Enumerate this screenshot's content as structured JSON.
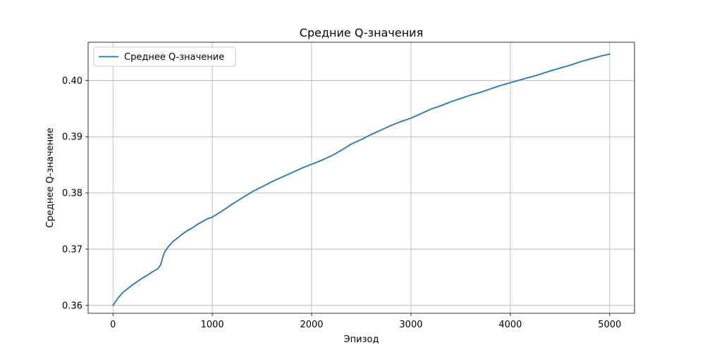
{
  "chart_data": {
    "type": "line",
    "title": "Средние Q-значения",
    "xlabel": "Эпизод",
    "ylabel": "Среднее Q-значение",
    "xlim": [
      -250,
      5250
    ],
    "ylim": [
      0.3586,
      0.4068
    ],
    "xticks": [
      0,
      1000,
      2000,
      3000,
      4000,
      5000
    ],
    "yticks": [
      0.36,
      0.37,
      0.38,
      0.39,
      0.4
    ],
    "ytick_labels": [
      "0.36",
      "0.37",
      "0.38",
      "0.39",
      "0.40"
    ],
    "grid": true,
    "legend_position": "top-left",
    "series": [
      {
        "name": "Среднее Q-значение",
        "color": "#1f77b4",
        "x": [
          0,
          50,
          100,
          150,
          200,
          250,
          300,
          350,
          400,
          450,
          480,
          500,
          520,
          560,
          600,
          650,
          700,
          750,
          800,
          850,
          900,
          950,
          1000,
          1100,
          1200,
          1300,
          1400,
          1500,
          1600,
          1700,
          1800,
          1900,
          2000,
          2100,
          2200,
          2300,
          2400,
          2500,
          2600,
          2700,
          2800,
          2900,
          3000,
          3100,
          3200,
          3300,
          3400,
          3500,
          3600,
          3700,
          3800,
          3900,
          4000,
          4100,
          4200,
          4300,
          4400,
          4500,
          4600,
          4700,
          4800,
          4900,
          5000
        ],
        "values": [
          0.36,
          0.3613,
          0.3623,
          0.363,
          0.3637,
          0.3643,
          0.3649,
          0.3654,
          0.366,
          0.3665,
          0.3672,
          0.3685,
          0.3695,
          0.3705,
          0.3713,
          0.372,
          0.3727,
          0.3733,
          0.3738,
          0.3744,
          0.3749,
          0.3754,
          0.3757,
          0.3768,
          0.378,
          0.3791,
          0.3802,
          0.3811,
          0.382,
          0.3828,
          0.3836,
          0.3844,
          0.3851,
          0.3858,
          0.3866,
          0.3876,
          0.3887,
          0.3895,
          0.3904,
          0.3912,
          0.392,
          0.3927,
          0.3933,
          0.3941,
          0.3949,
          0.3955,
          0.3962,
          0.3968,
          0.3974,
          0.3979,
          0.3985,
          0.3991,
          0.3996,
          0.4001,
          0.4006,
          0.4011,
          0.4017,
          0.4022,
          0.4027,
          0.4033,
          0.4038,
          0.4043,
          0.4047
        ]
      }
    ]
  }
}
